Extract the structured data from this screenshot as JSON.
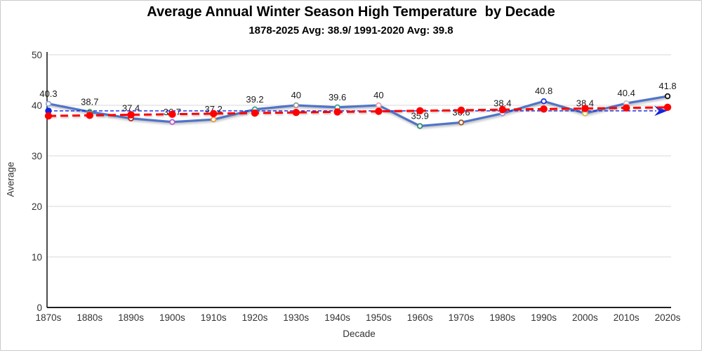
{
  "header": {
    "title": "Average Annual Winter Season High Temperature  by Decade",
    "subtitle": "1878-2025 Avg: 38.9/ 1991-2020 Avg: 39.8"
  },
  "chart_data": {
    "type": "line",
    "title": "Average Annual Winter Season High Temperature  by Decade",
    "subtitle": "1878-2025 Avg: 38.9/ 1991-2020 Avg: 39.8",
    "xlabel": "Decade",
    "ylabel": "Average",
    "ylim": [
      0,
      50
    ],
    "yticks": [
      0,
      10,
      20,
      30,
      40,
      50
    ],
    "grid": true,
    "legend": "none",
    "categories": [
      "1870s",
      "1880s",
      "1890s",
      "1900s",
      "1910s",
      "1920s",
      "1930s",
      "1940s",
      "1950s",
      "1960s",
      "1970s",
      "1980s",
      "1990s",
      "2000s",
      "2010s",
      "2020s"
    ],
    "series": [
      {
        "name": "decade-average-high",
        "type": "line",
        "color": "#4f74c9",
        "values": [
          40.3,
          38.7,
          37.4,
          36.7,
          37.2,
          39.2,
          40,
          39.6,
          40,
          35.9,
          36.6,
          38.4,
          40.8,
          38.4,
          40.4,
          41.8
        ],
        "data_labels": [
          "40.3",
          "38.7",
          "37.4",
          "36.7",
          "37.2",
          "39.2",
          "40",
          "39.6",
          "40",
          "35.9",
          "36.6",
          "38.4",
          "40.8",
          "38.4",
          "40.4",
          "41.8"
        ],
        "marker_colors": [
          "#8fa8dc",
          "#4ca64c",
          "#b22a2a",
          "#b85cc8",
          "#e59a38",
          "#3aa395",
          "#9b9b9b",
          "#3aa395",
          "#e9a2ae",
          "#2e8b74",
          "#9a5b2d",
          "#a793d1",
          "#2136d4",
          "#cfc34e",
          "#c8c8cc",
          "#111111"
        ]
      },
      {
        "name": "linear-trend",
        "type": "line-dashed",
        "color": "#ff0000",
        "values": [
          37.9,
          38.01,
          38.13,
          38.24,
          38.35,
          38.47,
          38.58,
          38.69,
          38.81,
          38.92,
          39.03,
          39.15,
          39.26,
          39.37,
          39.49,
          39.6
        ]
      },
      {
        "name": "longterm-average-reference",
        "type": "hline-dashed-arrow",
        "color": "#1024e0",
        "value": 38.9
      }
    ],
    "axis_colors": {
      "axis_line": "#000000",
      "gridline": "#d9d9d9",
      "tick_text": "#333333",
      "data_label_text": "#1a1a1a"
    }
  }
}
